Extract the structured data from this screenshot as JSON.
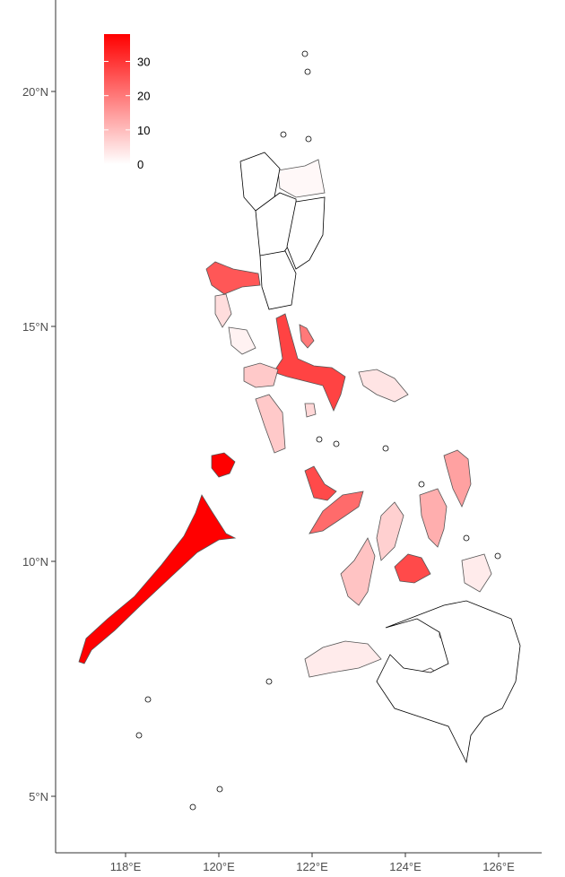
{
  "chart_data": {
    "type": "choropleth",
    "title": "",
    "xlabel": "",
    "ylabel": "",
    "x_ticks": [
      "118°E",
      "120°E",
      "122°E",
      "124°E",
      "126°E"
    ],
    "x_tick_values": [
      118,
      120,
      122,
      124,
      126
    ],
    "y_ticks": [
      "20°N",
      "15°N",
      "10°N",
      "5°N"
    ],
    "y_tick_values": [
      20,
      15,
      10,
      5
    ],
    "xlim": [
      116.6,
      127.1
    ],
    "ylim": [
      4.2,
      22.1
    ],
    "grid": false,
    "legend": {
      "position": "top-left",
      "labels": [
        "30",
        "20",
        "10",
        "0"
      ],
      "values": [
        30,
        20,
        10,
        0
      ],
      "range": [
        0,
        38
      ],
      "low_color": "#FFFFFF",
      "high_color": "#FF0000"
    },
    "region_values": [
      38,
      38,
      28,
      27,
      27,
      25,
      22,
      20,
      14,
      12,
      9,
      8,
      8,
      7,
      6,
      5,
      4,
      3,
      3,
      2,
      2,
      1,
      1,
      0,
      0,
      0,
      0,
      0
    ]
  }
}
